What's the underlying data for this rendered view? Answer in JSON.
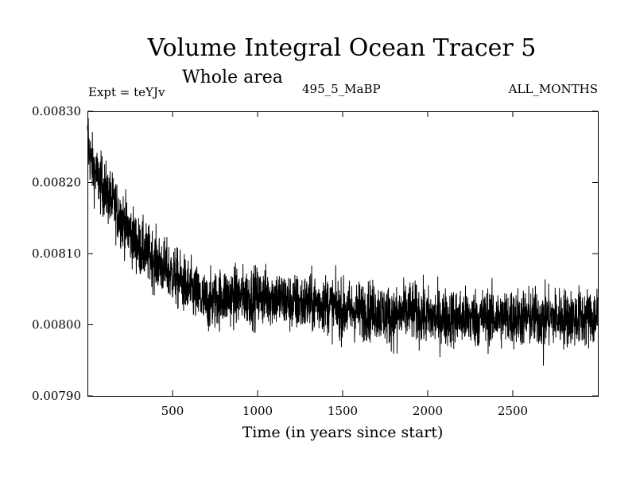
{
  "chart_data": {
    "type": "line",
    "title": "Volume Integral Ocean Tracer 5",
    "subtitle": "Whole area",
    "experiment_label": "Expt = teYJv",
    "run_label": "495_5_MaBP",
    "period_label": "ALL_MONTHS",
    "xlabel": "Time (in years since start)",
    "ylabel": "",
    "xlim": [
      0,
      3000
    ],
    "ylim": [
      0.0079,
      0.0083
    ],
    "x_ticks": [
      {
        "value": 500,
        "label": "500"
      },
      {
        "value": 1000,
        "label": "1000"
      },
      {
        "value": 1500,
        "label": "1500"
      },
      {
        "value": 2000,
        "label": "2000"
      },
      {
        "value": 2500,
        "label": "2500"
      }
    ],
    "y_ticks": [
      {
        "value": 0.0079,
        "label": "0.00790"
      },
      {
        "value": 0.008,
        "label": "0.00800"
      },
      {
        "value": 0.0081,
        "label": "0.00810"
      },
      {
        "value": 0.0082,
        "label": "0.00820"
      },
      {
        "value": 0.0083,
        "label": "0.00830"
      }
    ],
    "series": [
      {
        "name": "Tracer 5",
        "color": "#000000",
        "x": [
          0,
          20,
          50,
          100,
          150,
          200,
          250,
          300,
          350,
          400,
          450,
          500,
          550,
          600,
          650,
          700,
          800,
          900,
          1000,
          1100,
          1200,
          1300,
          1400,
          1500,
          1600,
          1700,
          1800,
          1900,
          2000,
          2100,
          2200,
          2300,
          2400,
          2500,
          2600,
          2700,
          2800,
          2900,
          3000
        ],
        "y": [
          0.00826,
          0.00823,
          0.00821,
          0.00819,
          0.00817,
          0.00815,
          0.00813,
          0.00811,
          0.0081,
          0.00809,
          0.00808,
          0.00807,
          0.00806,
          0.00805,
          0.00804,
          0.00803,
          0.00804,
          0.00804,
          0.00804,
          0.00804,
          0.00803,
          0.00803,
          0.00803,
          0.00802,
          0.00802,
          0.00802,
          0.00801,
          0.00802,
          0.00801,
          0.00801,
          0.00801,
          0.00801,
          0.00801,
          0.00801,
          0.00801,
          0.00801,
          0.00801,
          0.00801,
          0.00801
        ],
        "noise_amplitude": 2.8e-05,
        "extremes": [
          {
            "x": 5,
            "y": 0.00829
          },
          {
            "x": 1820,
            "y": 0.00796
          },
          {
            "x": 2680,
            "y": 0.007943
          },
          {
            "x": 2995,
            "y": 0.00805
          }
        ]
      }
    ]
  }
}
